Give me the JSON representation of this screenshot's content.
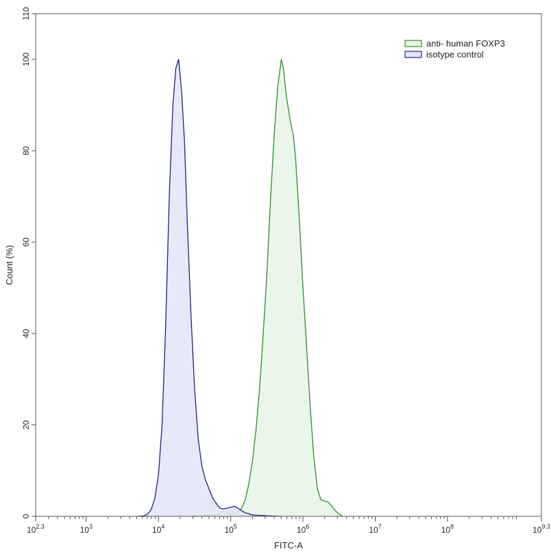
{
  "chart_data": {
    "type": "area",
    "title": "",
    "xlabel": "FITC-A",
    "ylabel": "Count (%)",
    "x_scale": "log10",
    "xlim": [
      2.3,
      9.3
    ],
    "ylim": [
      0,
      110
    ],
    "grid": false,
    "legend_position": "top-right",
    "x_ticks": [
      {
        "base": "10",
        "exp": "2.3",
        "value": 2.3
      },
      {
        "base": "10",
        "exp": "3",
        "value": 3
      },
      {
        "base": "10",
        "exp": "4",
        "value": 4
      },
      {
        "base": "10",
        "exp": "5",
        "value": 5
      },
      {
        "base": "10",
        "exp": "6",
        "value": 6
      },
      {
        "base": "10",
        "exp": "7",
        "value": 7
      },
      {
        "base": "10",
        "exp": "8",
        "value": 8
      },
      {
        "base": "10",
        "exp": "9.3",
        "value": 9.3
      }
    ],
    "y_ticks": [
      "0",
      "20",
      "40",
      "60",
      "80",
      "100",
      "110"
    ],
    "series": [
      {
        "name": "anti- human FOXP3",
        "stroke": "#2e8b2e",
        "fill": "#e6f4e6",
        "points": [
          [
            4.45,
            0
          ],
          [
            4.55,
            0
          ],
          [
            4.65,
            0.2
          ],
          [
            4.75,
            0.3
          ],
          [
            4.85,
            0.6
          ],
          [
            4.9,
            1.1
          ],
          [
            4.95,
            0.8
          ],
          [
            5.0,
            0.5
          ],
          [
            5.05,
            0.7
          ],
          [
            5.1,
            1.0
          ],
          [
            5.15,
            1.8
          ],
          [
            5.2,
            3.5
          ],
          [
            5.25,
            7
          ],
          [
            5.3,
            12
          ],
          [
            5.35,
            19
          ],
          [
            5.4,
            28
          ],
          [
            5.45,
            40
          ],
          [
            5.5,
            53
          ],
          [
            5.55,
            69
          ],
          [
            5.6,
            83
          ],
          [
            5.65,
            94
          ],
          [
            5.7,
            100
          ],
          [
            5.73,
            98
          ],
          [
            5.77,
            92
          ],
          [
            5.82,
            87
          ],
          [
            5.87,
            83
          ],
          [
            5.9,
            78
          ],
          [
            5.95,
            65
          ],
          [
            6.0,
            50
          ],
          [
            6.05,
            37
          ],
          [
            6.1,
            24
          ],
          [
            6.15,
            13
          ],
          [
            6.2,
            6
          ],
          [
            6.25,
            3.6
          ],
          [
            6.3,
            3.3
          ],
          [
            6.35,
            3.1
          ],
          [
            6.4,
            2.2
          ],
          [
            6.45,
            1.2
          ],
          [
            6.5,
            0.5
          ],
          [
            6.55,
            0
          ]
        ]
      },
      {
        "name": "isotype control",
        "stroke": "#1a237e",
        "fill": "#e3e5f8",
        "points": [
          [
            3.7,
            0
          ],
          [
            3.8,
            0.1
          ],
          [
            3.85,
            0.5
          ],
          [
            3.9,
            1.5
          ],
          [
            3.95,
            4
          ],
          [
            4.0,
            9
          ],
          [
            4.05,
            20
          ],
          [
            4.1,
            42
          ],
          [
            4.15,
            70
          ],
          [
            4.2,
            90
          ],
          [
            4.24,
            98
          ],
          [
            4.28,
            100
          ],
          [
            4.32,
            93
          ],
          [
            4.36,
            82
          ],
          [
            4.4,
            64
          ],
          [
            4.45,
            44
          ],
          [
            4.5,
            28
          ],
          [
            4.55,
            17
          ],
          [
            4.6,
            11
          ],
          [
            4.65,
            8
          ],
          [
            4.7,
            6
          ],
          [
            4.75,
            4
          ],
          [
            4.8,
            2.8
          ],
          [
            4.85,
            1.8
          ],
          [
            4.9,
            1.6
          ],
          [
            4.95,
            1.8
          ],
          [
            5.0,
            2.0
          ],
          [
            5.05,
            2.2
          ],
          [
            5.1,
            1.8
          ],
          [
            5.15,
            1.2
          ],
          [
            5.2,
            0.8
          ],
          [
            5.3,
            0.3
          ],
          [
            5.5,
            0.1
          ],
          [
            5.7,
            0
          ]
        ]
      }
    ]
  }
}
